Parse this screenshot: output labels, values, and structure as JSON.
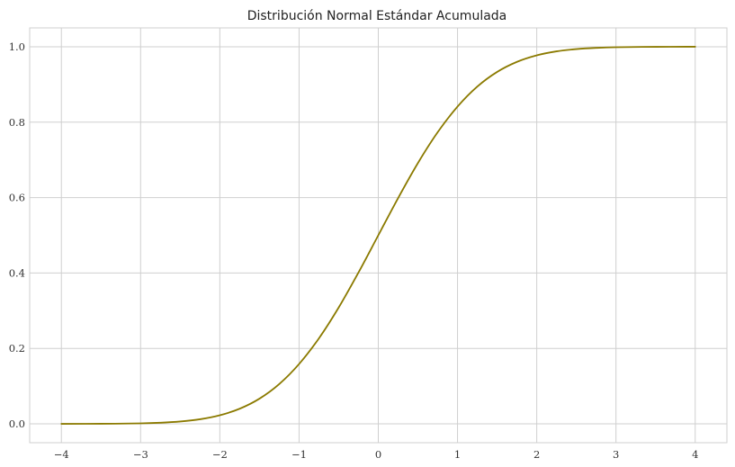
{
  "chart_data": {
    "type": "line",
    "title": "Distribución Normal Estándar Acumulada",
    "xlabel": "",
    "ylabel": "",
    "xlim": [
      -4.4,
      4.4
    ],
    "ylim": [
      -0.05,
      1.05
    ],
    "xticks": [
      -4,
      -3,
      -2,
      -1,
      0,
      1,
      2,
      3,
      4
    ],
    "xtick_labels": [
      "−4",
      "−3",
      "−2",
      "−1",
      "0",
      "1",
      "2",
      "3",
      "4"
    ],
    "yticks": [
      0.0,
      0.2,
      0.4,
      0.6,
      0.8,
      1.0
    ],
    "ytick_labels": [
      "0.0",
      "0.2",
      "0.4",
      "0.6",
      "0.8",
      "1.0"
    ],
    "grid": true,
    "series": [
      {
        "color": "#8b7a00",
        "x": [
          -4.0,
          -3.5,
          -3.0,
          -2.75,
          -2.5,
          -2.25,
          -2.0,
          -1.75,
          -1.5,
          -1.25,
          -1.0,
          -0.75,
          -0.5,
          -0.25,
          0.0,
          0.25,
          0.5,
          0.75,
          1.0,
          1.25,
          1.5,
          1.75,
          2.0,
          2.25,
          2.5,
          2.75,
          3.0,
          3.5,
          4.0
        ],
        "y": [
          0.0,
          0.0002,
          0.0013,
          0.003,
          0.0062,
          0.0122,
          0.0228,
          0.0401,
          0.0668,
          0.1056,
          0.1587,
          0.2266,
          0.3085,
          0.4013,
          0.5,
          0.5987,
          0.6915,
          0.7734,
          0.8413,
          0.8944,
          0.9332,
          0.9599,
          0.9772,
          0.9878,
          0.9938,
          0.997,
          0.9987,
          0.9998,
          1.0
        ]
      }
    ]
  }
}
